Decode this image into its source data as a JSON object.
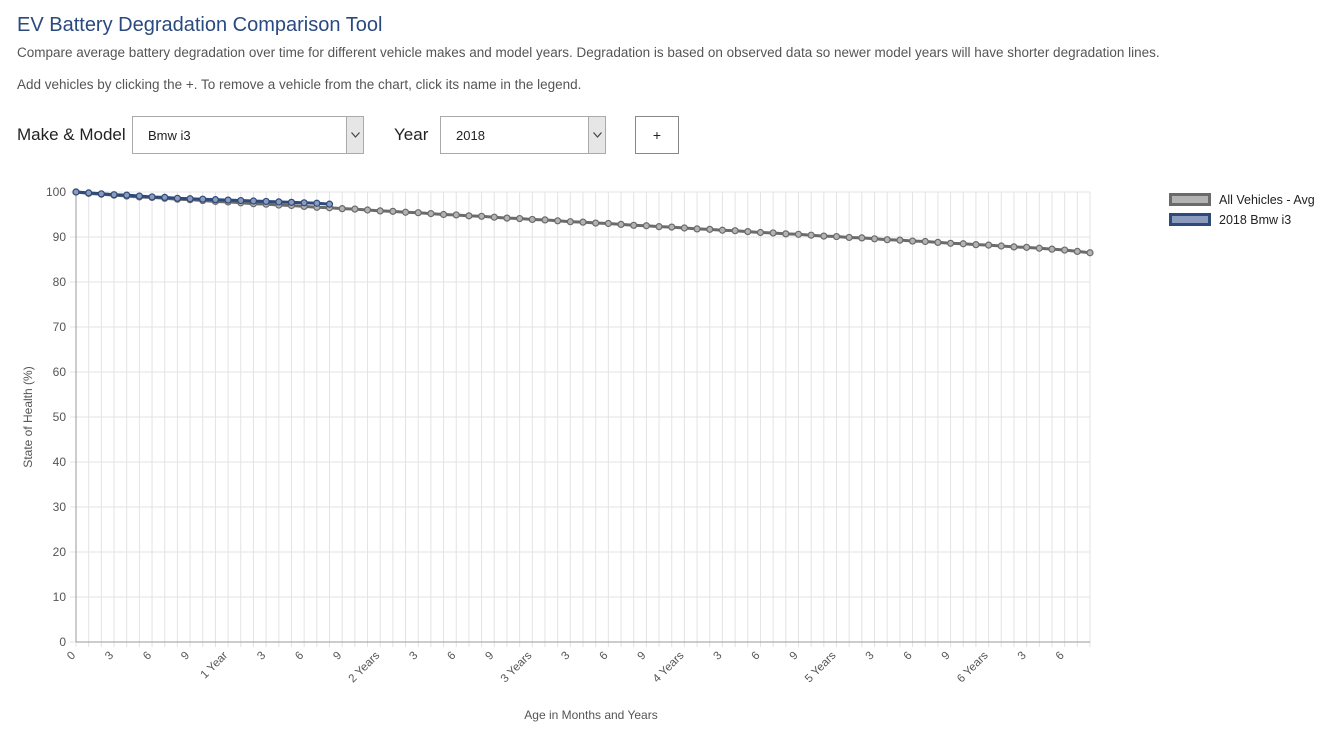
{
  "page": {
    "title": "EV Battery Degradation Comparison Tool",
    "description": "Compare average battery degradation over time for different vehicle makes and model years. Degradation is based on observed data so newer model years will have shorter degradation lines.",
    "instructions": "Add vehicles by clicking the +. To remove a vehicle from the chart, click its name in the legend."
  },
  "controls": {
    "make_model_label": "Make & Model",
    "make_model_value": "Bmw i3",
    "year_label": "Year",
    "year_value": "2018",
    "add_button_label": "+"
  },
  "colors": {
    "title": "#2a4a7f",
    "avg_line": "#6b6b6b",
    "avg_fill": "#b3b3b3",
    "bmw_line": "#2e4a7a",
    "bmw_fill": "#8a9bbd",
    "grid": "#e3e3e3"
  },
  "chart_data": {
    "type": "line",
    "ylabel": "State of Health (%)",
    "xlabel": "Age in Months and Years",
    "ylim": [
      0,
      100
    ],
    "xlim": [
      0,
      80
    ],
    "yticks": [
      0,
      10,
      20,
      30,
      40,
      50,
      60,
      70,
      80,
      90,
      100
    ],
    "grid": true,
    "legend_position": "top-right",
    "x_ticks": [
      {
        "month": 0,
        "label": "0"
      },
      {
        "month": 3,
        "label": "3"
      },
      {
        "month": 6,
        "label": "6"
      },
      {
        "month": 9,
        "label": "9"
      },
      {
        "month": 12,
        "label": "1 Year"
      },
      {
        "month": 15,
        "label": "3"
      },
      {
        "month": 18,
        "label": "6"
      },
      {
        "month": 21,
        "label": "9"
      },
      {
        "month": 24,
        "label": "2 Years"
      },
      {
        "month": 27,
        "label": "3"
      },
      {
        "month": 30,
        "label": "6"
      },
      {
        "month": 33,
        "label": "9"
      },
      {
        "month": 36,
        "label": "3 Years"
      },
      {
        "month": 39,
        "label": "3"
      },
      {
        "month": 42,
        "label": "6"
      },
      {
        "month": 45,
        "label": "9"
      },
      {
        "month": 48,
        "label": "4 Years"
      },
      {
        "month": 51,
        "label": "3"
      },
      {
        "month": 54,
        "label": "6"
      },
      {
        "month": 57,
        "label": "9"
      },
      {
        "month": 60,
        "label": "5 Years"
      },
      {
        "month": 63,
        "label": "3"
      },
      {
        "month": 66,
        "label": "6"
      },
      {
        "month": 69,
        "label": "9"
      },
      {
        "month": 72,
        "label": "6 Years"
      },
      {
        "month": 75,
        "label": "3"
      },
      {
        "month": 78,
        "label": "6"
      }
    ],
    "series": [
      {
        "name": "All Vehicles - Avg",
        "x": [
          0,
          1,
          2,
          3,
          4,
          5,
          6,
          7,
          8,
          9,
          10,
          11,
          12,
          13,
          14,
          15,
          16,
          17,
          18,
          19,
          20,
          21,
          22,
          23,
          24,
          25,
          26,
          27,
          28,
          29,
          30,
          31,
          32,
          33,
          34,
          35,
          36,
          37,
          38,
          39,
          40,
          41,
          42,
          43,
          44,
          45,
          46,
          47,
          48,
          49,
          50,
          51,
          52,
          53,
          54,
          55,
          56,
          57,
          58,
          59,
          60,
          61,
          62,
          63,
          64,
          65,
          66,
          67,
          68,
          69,
          70,
          71,
          72,
          73,
          74,
          75,
          76,
          77,
          78,
          79,
          80
        ],
        "y": [
          100,
          99.7,
          99.5,
          99.3,
          99.1,
          98.9,
          98.8,
          98.6,
          98.4,
          98.3,
          98.1,
          97.9,
          97.8,
          97.6,
          97.4,
          97.3,
          97.1,
          97.0,
          96.8,
          96.6,
          96.5,
          96.3,
          96.2,
          96.0,
          95.8,
          95.7,
          95.5,
          95.4,
          95.2,
          95.0,
          94.9,
          94.7,
          94.6,
          94.4,
          94.2,
          94.1,
          93.9,
          93.8,
          93.6,
          93.4,
          93.3,
          93.1,
          93.0,
          92.8,
          92.6,
          92.5,
          92.3,
          92.2,
          92.0,
          91.8,
          91.7,
          91.5,
          91.4,
          91.2,
          91.0,
          90.9,
          90.7,
          90.6,
          90.4,
          90.2,
          90.1,
          89.9,
          89.8,
          89.6,
          89.4,
          89.3,
          89.1,
          89.0,
          88.8,
          88.6,
          88.5,
          88.3,
          88.2,
          88.0,
          87.8,
          87.7,
          87.5,
          87.3,
          87.1,
          86.8,
          86.5
        ]
      },
      {
        "name": "2018 Bmw i3",
        "x": [
          0,
          1,
          2,
          3,
          4,
          5,
          6,
          7,
          8,
          9,
          10,
          11,
          12,
          13,
          14,
          15,
          16,
          17,
          18,
          19,
          20
        ],
        "y": [
          100,
          99.8,
          99.6,
          99.4,
          99.3,
          99.1,
          98.9,
          98.8,
          98.6,
          98.5,
          98.4,
          98.3,
          98.2,
          98.1,
          98.0,
          97.9,
          97.8,
          97.7,
          97.6,
          97.5,
          97.3
        ]
      }
    ]
  }
}
